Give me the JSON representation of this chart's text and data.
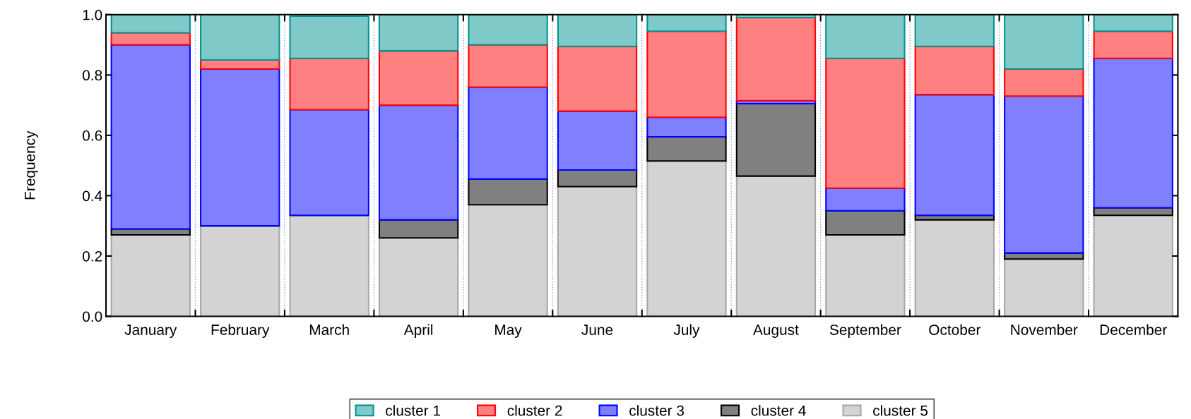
{
  "chart_data": {
    "type": "bar",
    "stacked": true,
    "ylabel": "Frequency",
    "categories": [
      "January",
      "February",
      "March",
      "April",
      "May",
      "June",
      "July",
      "August",
      "September",
      "October",
      "November",
      "December"
    ],
    "series": [
      {
        "name": "cluster 5",
        "color": "#d3d3d3",
        "values": [
          0.27,
          0.3,
          0.335,
          0.26,
          0.37,
          0.43,
          0.515,
          0.465,
          0.27,
          0.32,
          0.19,
          0.335
        ]
      },
      {
        "name": "cluster 4",
        "color": "#808080",
        "values": [
          0.02,
          null,
          null,
          0.06,
          0.085,
          0.055,
          0.08,
          0.24,
          0.08,
          0.015,
          0.02,
          0.025
        ]
      },
      {
        "name": "cluster 3",
        "color": "#8080ff",
        "values": [
          0.61,
          0.52,
          0.35,
          0.38,
          0.305,
          0.195,
          0.065,
          0.01,
          0.075,
          0.4,
          0.52,
          0.495
        ]
      },
      {
        "name": "cluster 2",
        "color": "#ff8080",
        "values": [
          0.04,
          0.03,
          0.17,
          0.18,
          0.14,
          0.215,
          0.285,
          0.275,
          0.43,
          0.16,
          0.09,
          0.09
        ]
      },
      {
        "name": "cluster 1",
        "color": "#80c9c9",
        "values": [
          0.06,
          0.15,
          0.14,
          0.12,
          0.1,
          0.105,
          0.055,
          0.01,
          0.145,
          0.105,
          0.18,
          0.055
        ]
      }
    ],
    "ylim": [
      0,
      1
    ],
    "yticks": [
      {
        "value": 0,
        "label": "0.0"
      },
      {
        "value": 0.2,
        "label": "0.2"
      },
      {
        "value": 0.4,
        "label": "0.4"
      },
      {
        "value": 0.6,
        "label": "0.6"
      },
      {
        "value": 0.8,
        "label": "0.8"
      },
      {
        "value": 1,
        "label": "1.0"
      }
    ],
    "grid": "x",
    "legend": "bottom"
  }
}
